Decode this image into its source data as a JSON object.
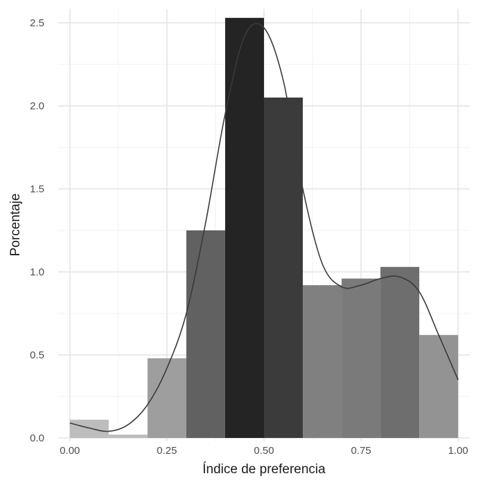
{
  "chart_data": {
    "type": "bar",
    "xlabel": "Índice de preferencia",
    "ylabel": "Porcentaje",
    "xlim": [
      -0.03,
      1.03
    ],
    "ylim": [
      0,
      2.5
    ],
    "x_ticks": [
      0.0,
      0.25,
      0.5,
      0.75,
      1.0
    ],
    "x_tick_labels": [
      "0.00",
      "0.25",
      "0.50",
      "0.75",
      "1.00"
    ],
    "y_ticks": [
      0.0,
      0.5,
      1.0,
      1.5,
      2.0,
      2.5
    ],
    "y_tick_labels": [
      "0.0",
      "0.5",
      "1.0",
      "1.5",
      "2.0",
      "2.5"
    ],
    "grid": true,
    "bins": [
      {
        "x0": 0.0,
        "x1": 0.1,
        "value": 0.11,
        "color": "#bdbdbd"
      },
      {
        "x0": 0.1,
        "x1": 0.2,
        "value": 0.02,
        "color": "#bdbdbd"
      },
      {
        "x0": 0.2,
        "x1": 0.3,
        "value": 0.48,
        "color": "#9e9e9e"
      },
      {
        "x0": 0.3,
        "x1": 0.4,
        "value": 1.25,
        "color": "#616161"
      },
      {
        "x0": 0.4,
        "x1": 0.5,
        "value": 2.53,
        "color": "#242424"
      },
      {
        "x0": 0.5,
        "x1": 0.6,
        "value": 2.05,
        "color": "#3b3b3b"
      },
      {
        "x0": 0.6,
        "x1": 0.7,
        "value": 0.92,
        "color": "#808080"
      },
      {
        "x0": 0.7,
        "x1": 0.8,
        "value": 0.96,
        "color": "#7a7a7a"
      },
      {
        "x0": 0.8,
        "x1": 0.9,
        "value": 1.03,
        "color": "#6e6e6e"
      },
      {
        "x0": 0.9,
        "x1": 1.0,
        "value": 0.62,
        "color": "#939393"
      }
    ],
    "density_curve": {
      "color": "#3a3a3a",
      "x": [
        0.0,
        0.05,
        0.1,
        0.15,
        0.2,
        0.25,
        0.3,
        0.35,
        0.4,
        0.45,
        0.5,
        0.55,
        0.6,
        0.65,
        0.7,
        0.75,
        0.8,
        0.85,
        0.9,
        0.95,
        1.0
      ],
      "y": [
        0.09,
        0.06,
        0.04,
        0.08,
        0.2,
        0.42,
        0.75,
        1.3,
        1.95,
        2.42,
        2.47,
        2.15,
        1.5,
        1.05,
        0.91,
        0.92,
        0.96,
        0.97,
        0.88,
        0.62,
        0.35
      ]
    }
  }
}
